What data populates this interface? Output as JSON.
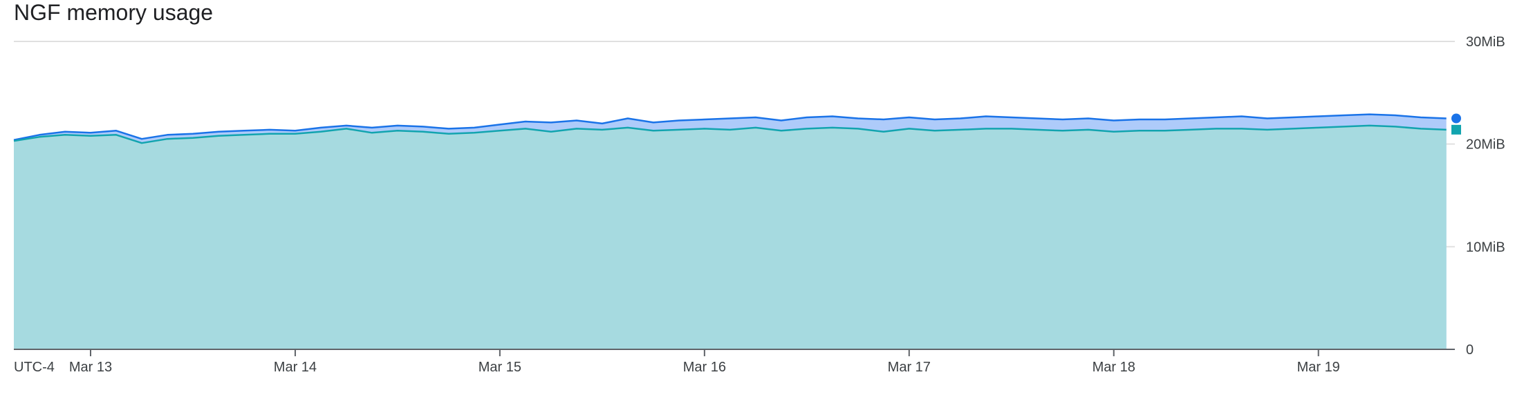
{
  "chart_data": {
    "type": "area",
    "title": "NGF memory usage",
    "timezone_label": "UTC-4",
    "x_ticks": [
      "Mar 13",
      "Mar 14",
      "Mar 15",
      "Mar 16",
      "Mar 17",
      "Mar 18",
      "Mar 19"
    ],
    "xlim": [
      "Mar 12 15:00",
      "Mar 19 16:00"
    ],
    "ylim": [
      0,
      30
    ],
    "y_unit": "MiB",
    "y_ticks": [
      "0",
      "10MiB",
      "20MiB",
      "30MiB"
    ],
    "y_tick_values": [
      0,
      10,
      20,
      30
    ],
    "y_axis_side": "right",
    "grid": true,
    "x": [
      "Mar 12 15:00",
      "Mar 12 18:00",
      "Mar 12 21:00",
      "Mar 13 00:00",
      "Mar 13 03:00",
      "Mar 13 06:00",
      "Mar 13 09:00",
      "Mar 13 12:00",
      "Mar 13 15:00",
      "Mar 13 18:00",
      "Mar 13 21:00",
      "Mar 14 00:00",
      "Mar 14 03:00",
      "Mar 14 06:00",
      "Mar 14 09:00",
      "Mar 14 12:00",
      "Mar 14 15:00",
      "Mar 14 18:00",
      "Mar 14 21:00",
      "Mar 15 00:00",
      "Mar 15 03:00",
      "Mar 15 06:00",
      "Mar 15 09:00",
      "Mar 15 12:00",
      "Mar 15 15:00",
      "Mar 15 18:00",
      "Mar 15 21:00",
      "Mar 16 00:00",
      "Mar 16 03:00",
      "Mar 16 06:00",
      "Mar 16 09:00",
      "Mar 16 12:00",
      "Mar 16 15:00",
      "Mar 16 18:00",
      "Mar 16 21:00",
      "Mar 17 00:00",
      "Mar 17 03:00",
      "Mar 17 06:00",
      "Mar 17 09:00",
      "Mar 17 12:00",
      "Mar 17 15:00",
      "Mar 17 18:00",
      "Mar 17 21:00",
      "Mar 18 00:00",
      "Mar 18 03:00",
      "Mar 18 06:00",
      "Mar 18 09:00",
      "Mar 18 12:00",
      "Mar 18 15:00",
      "Mar 18 18:00",
      "Mar 18 21:00",
      "Mar 19 00:00",
      "Mar 19 03:00",
      "Mar 19 06:00",
      "Mar 19 09:00",
      "Mar 19 12:00",
      "Mar 19 15:00"
    ],
    "series": [
      {
        "color": "#1a73e8",
        "fill": "#aecbfa",
        "marker": "circle",
        "values": [
          20.4,
          20.9,
          21.2,
          21.1,
          21.3,
          20.5,
          20.9,
          21.0,
          21.2,
          21.3,
          21.4,
          21.3,
          21.6,
          21.8,
          21.6,
          21.8,
          21.7,
          21.5,
          21.6,
          21.9,
          22.2,
          22.1,
          22.3,
          22.0,
          22.5,
          22.1,
          22.3,
          22.4,
          22.5,
          22.6,
          22.3,
          22.6,
          22.7,
          22.5,
          22.4,
          22.6,
          22.4,
          22.5,
          22.7,
          22.6,
          22.5,
          22.4,
          22.5,
          22.3,
          22.4,
          22.4,
          22.5,
          22.6,
          22.7,
          22.5,
          22.6,
          22.7,
          22.8,
          22.9,
          22.8,
          22.6,
          22.5
        ]
      },
      {
        "color": "#12a4af",
        "fill": "#a6dae0",
        "marker": "square",
        "values": [
          20.3,
          20.7,
          20.9,
          20.8,
          20.9,
          20.1,
          20.5,
          20.6,
          20.8,
          20.9,
          21.0,
          21.0,
          21.2,
          21.5,
          21.1,
          21.3,
          21.2,
          21.0,
          21.1,
          21.3,
          21.5,
          21.2,
          21.5,
          21.4,
          21.6,
          21.3,
          21.4,
          21.5,
          21.4,
          21.6,
          21.3,
          21.5,
          21.6,
          21.5,
          21.2,
          21.5,
          21.3,
          21.4,
          21.5,
          21.5,
          21.4,
          21.3,
          21.4,
          21.2,
          21.3,
          21.3,
          21.4,
          21.5,
          21.5,
          21.4,
          21.5,
          21.6,
          21.7,
          21.8,
          21.7,
          21.5,
          21.4
        ]
      }
    ]
  }
}
